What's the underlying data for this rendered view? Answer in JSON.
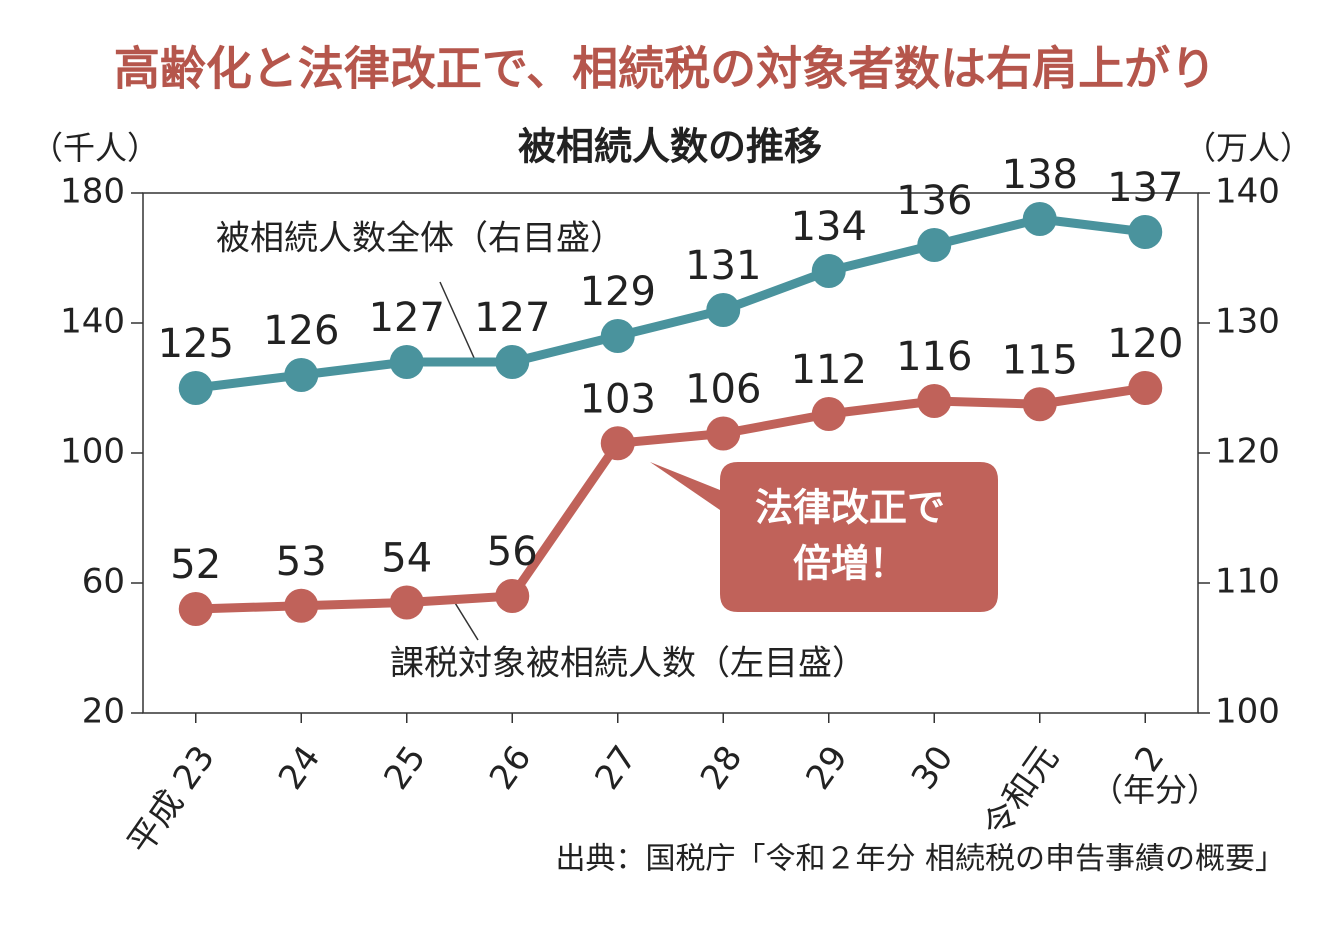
{
  "chart_data": {
    "type": "line",
    "title": "高齢化と法律改正で、相続税の対象者数は右肩上がり",
    "subtitle": "被相続人数の推移",
    "y_label": "（千人）",
    "y2_label": "（万人）",
    "x_unit": "（年分）",
    "categories": [
      "平成 23",
      "24",
      "25",
      "26",
      "27",
      "28",
      "29",
      "30",
      "令和元",
      "2"
    ],
    "ylim": [
      20,
      180
    ],
    "yticks": [
      20,
      60,
      100,
      140,
      180
    ],
    "y2lim": [
      100,
      140
    ],
    "y2ticks": [
      100,
      110,
      120,
      130,
      140
    ],
    "grid": false,
    "series": [
      {
        "name": "被相続人数全体（右目盛）",
        "color": "#4a939d",
        "axis": "y2",
        "values": [
          125,
          126,
          127,
          127,
          129,
          131,
          134,
          136,
          138,
          137
        ]
      },
      {
        "name": "課税対象被相続人数（左目盛）",
        "color": "#c0625a",
        "values": [
          52,
          53,
          54,
          56,
          103,
          106,
          112,
          116,
          115,
          120
        ]
      }
    ],
    "annotation": [
      "法律改正で",
      "倍増！"
    ],
    "source": "出典：国税庁「令和２年分 相続税の申告事績の概要」"
  }
}
